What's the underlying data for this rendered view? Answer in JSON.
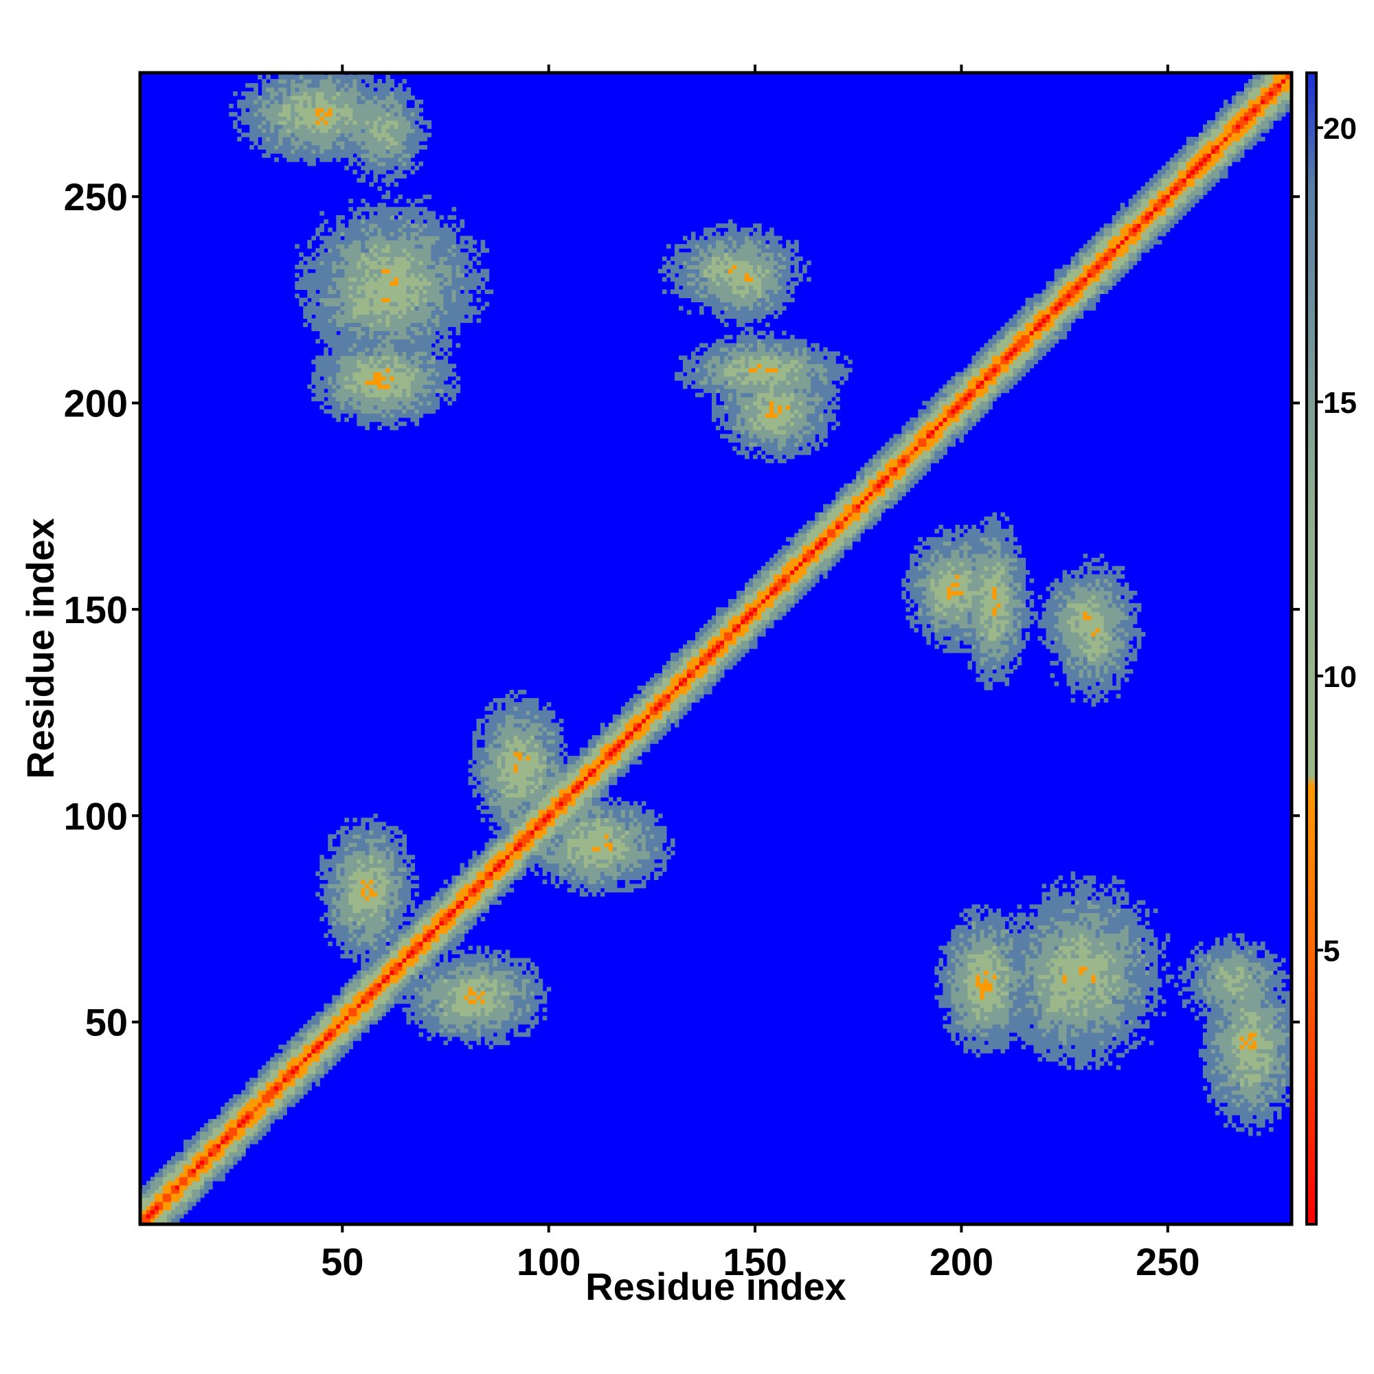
{
  "chart_data": {
    "type": "heatmap",
    "title": "",
    "xlabel": "Residue index",
    "ylabel": "Residue index",
    "xlim": [
      1,
      280
    ],
    "ylim": [
      1,
      280
    ],
    "x_ticks": [
      "50",
      "100",
      "150",
      "200",
      "250"
    ],
    "y_ticks": [
      "50",
      "100",
      "150",
      "200",
      "250"
    ],
    "colorbar": {
      "range": [
        0,
        21
      ],
      "ticks": [
        "5",
        "10",
        "15",
        "20"
      ],
      "colors": {
        "near": "#ff0000",
        "mid": "#ff9900",
        "far_band": "#9cb88a",
        "outer_band": "#5a7fa6",
        "background": "#0000ff"
      }
    },
    "contact_regions": [
      {
        "x": [
          1,
          280
        ],
        "y": [
          1,
          280
        ],
        "note": "main diagonal"
      },
      {
        "x": [
          45,
          75
        ],
        "y": [
          195,
          215
        ],
        "cx": 60,
        "cy": 206,
        "v": 5
      },
      {
        "x": [
          40,
          80
        ],
        "y": [
          215,
          250
        ],
        "cx": 62,
        "cy": 230,
        "v": 6
      },
      {
        "x": [
          50,
          70
        ],
        "y": [
          255,
          280
        ],
        "cx": 60,
        "cy": 266,
        "v": 7
      },
      {
        "x": [
          130,
          160
        ],
        "y": [
          220,
          240
        ],
        "cx": 145,
        "cy": 232,
        "v": 6
      },
      {
        "x": [
          140,
          165
        ],
        "y": [
          185,
          205
        ],
        "cx": 155,
        "cy": 198,
        "v": 5
      },
      {
        "x": [
          200,
          215
        ],
        "y": [
          135,
          170
        ],
        "cx": 208,
        "cy": 152,
        "v": 5
      },
      {
        "x": [
          215,
          240
        ],
        "y": [
          40,
          75
        ],
        "cx": 225,
        "cy": 60,
        "v": 6
      },
      {
        "x": [
          200,
          215
        ],
        "y": [
          45,
          70
        ],
        "cx": 205,
        "cy": 58,
        "v": 5
      },
      {
        "x": [
          260,
          280
        ],
        "y": [
          40,
          75
        ],
        "cx": 270,
        "cy": 44,
        "v": 5
      },
      {
        "x": [
          220,
          240
        ],
        "y": [
          140,
          160
        ],
        "cx": 230,
        "cy": 148,
        "v": 6
      },
      {
        "x": [
          70,
          100
        ],
        "y": [
          40,
          60
        ],
        "cx": 82,
        "cy": 56,
        "v": 5
      },
      {
        "x": [
          100,
          130
        ],
        "y": [
          85,
          105
        ],
        "cx": 112,
        "cy": 93,
        "v": 5
      }
    ]
  }
}
